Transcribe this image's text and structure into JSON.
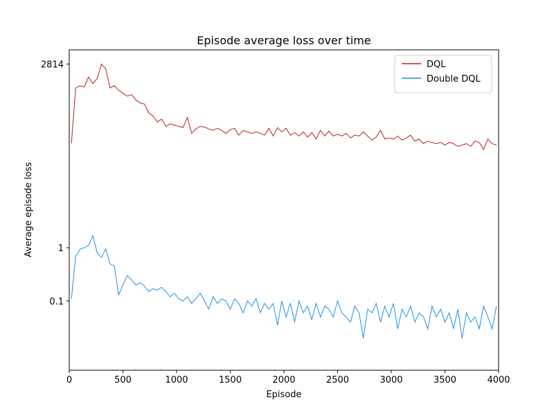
{
  "chart_data": {
    "type": "line",
    "title": "Episode average loss over time",
    "x_label": "Episode",
    "y_label": "Average episode loss",
    "x": [
      20,
      60,
      100,
      140,
      180,
      220,
      260,
      300,
      340,
      380,
      420,
      460,
      500,
      540,
      580,
      620,
      660,
      700,
      740,
      780,
      820,
      860,
      900,
      940,
      980,
      1020,
      1060,
      1100,
      1140,
      1180,
      1220,
      1260,
      1300,
      1340,
      1380,
      1420,
      1460,
      1500,
      1540,
      1580,
      1620,
      1660,
      1700,
      1740,
      1780,
      1820,
      1860,
      1900,
      1940,
      1980,
      2020,
      2060,
      2100,
      2140,
      2180,
      2220,
      2260,
      2300,
      2340,
      2380,
      2420,
      2460,
      2500,
      2540,
      2580,
      2620,
      2660,
      2700,
      2740,
      2780,
      2820,
      2860,
      2900,
      2940,
      2980,
      3020,
      3060,
      3100,
      3140,
      3180,
      3220,
      3260,
      3300,
      3340,
      3380,
      3420,
      3460,
      3500,
      3540,
      3580,
      3620,
      3660,
      3700,
      3740,
      3780,
      3820,
      3860,
      3900,
      3940,
      3980
    ],
    "series": [
      {
        "name": "DQL",
        "color": "#b22222",
        "values": [
          91,
          1000,
          1100,
          1050,
          1600,
          1200,
          1500,
          2814,
          2300,
          1000,
          1100,
          900,
          800,
          700,
          750,
          600,
          520,
          500,
          340,
          300,
          230,
          260,
          190,
          210,
          200,
          190,
          180,
          280,
          140,
          170,
          190,
          185,
          170,
          160,
          175,
          160,
          140,
          165,
          175,
          130,
          160,
          150,
          140,
          150,
          140,
          130,
          175,
          125,
          180,
          150,
          175,
          130,
          145,
          125,
          150,
          120,
          145,
          110,
          160,
          125,
          155,
          125,
          135,
          125,
          140,
          115,
          130,
          125,
          150,
          125,
          105,
          120,
          160,
          110,
          115,
          110,
          125,
          105,
          115,
          130,
          100,
          110,
          90,
          100,
          95,
          90,
          95,
          85,
          95,
          90,
          80,
          85,
          90,
          80,
          100,
          95,
          70,
          110,
          90,
          85
        ]
      },
      {
        "name": "Double DQL",
        "color": "#1e8fe6",
        "values": [
          0.11,
          0.7,
          0.94,
          1.0,
          1.1,
          1.7,
          0.8,
          0.66,
          0.95,
          0.5,
          0.45,
          0.13,
          0.2,
          0.3,
          0.25,
          0.2,
          0.22,
          0.19,
          0.15,
          0.17,
          0.16,
          0.18,
          0.15,
          0.12,
          0.14,
          0.11,
          0.1,
          0.12,
          0.09,
          0.11,
          0.14,
          0.1,
          0.07,
          0.12,
          0.09,
          0.11,
          0.1,
          0.07,
          0.11,
          0.09,
          0.06,
          0.1,
          0.08,
          0.11,
          0.06,
          0.09,
          0.07,
          0.09,
          0.035,
          0.1,
          0.05,
          0.09,
          0.04,
          0.1,
          0.06,
          0.08,
          0.045,
          0.09,
          0.05,
          0.08,
          0.07,
          0.05,
          0.1,
          0.06,
          0.05,
          0.04,
          0.08,
          0.06,
          0.02,
          0.07,
          0.06,
          0.09,
          0.04,
          0.08,
          0.05,
          0.09,
          0.03,
          0.07,
          0.05,
          0.08,
          0.04,
          0.06,
          0.05,
          0.03,
          0.08,
          0.05,
          0.07,
          0.04,
          0.06,
          0.03,
          0.07,
          0.02,
          0.06,
          0.04,
          0.05,
          0.03,
          0.08,
          0.05,
          0.03,
          0.08
        ]
      }
    ],
    "xlim": [
      0,
      4000
    ],
    "xticks": [
      0,
      500,
      1000,
      1500,
      2000,
      2500,
      3000,
      3500,
      4000
    ],
    "ylim": [
      0.005,
      5200
    ],
    "yticks": [
      0.1,
      1,
      2814
    ],
    "log_y": true,
    "legend": "upper right"
  }
}
